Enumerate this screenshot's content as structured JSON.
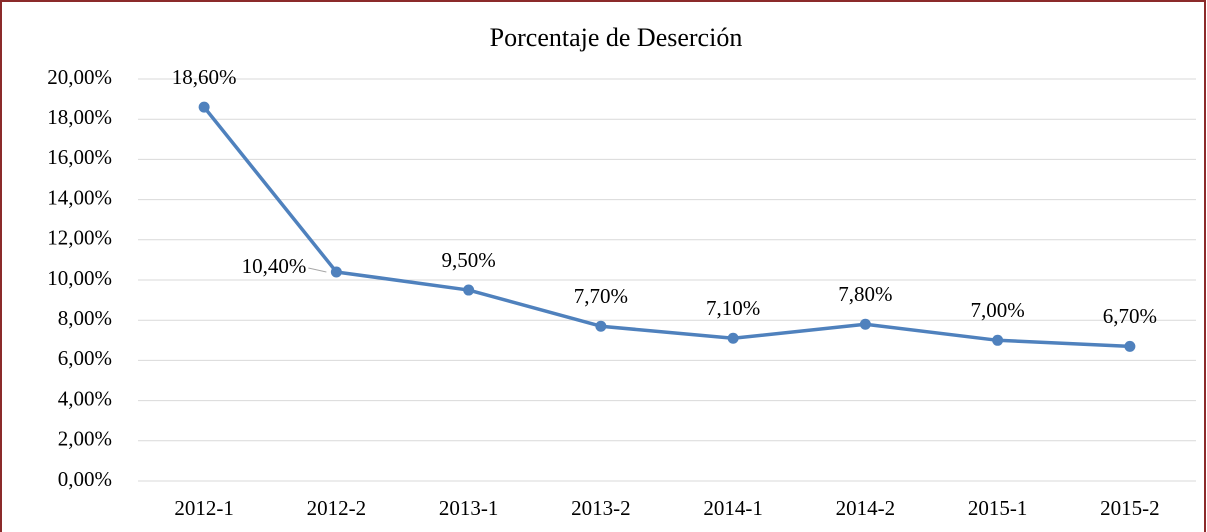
{
  "chart_data": {
    "type": "line",
    "title": "Porcentaje de Deserción",
    "categories": [
      "2012-1",
      "2012-2",
      "2013-1",
      "2013-2",
      "2014-1",
      "2014-2",
      "2015-1",
      "2015-2"
    ],
    "series": [
      {
        "name": "Porcentaje de Deserción",
        "color": "#4f81bd",
        "values": [
          18.6,
          10.4,
          9.5,
          7.7,
          7.1,
          7.8,
          7.0,
          6.7
        ],
        "value_labels": [
          "18,60%",
          "10,40%",
          "9,50%",
          "7,70%",
          "7,10%",
          "7,80%",
          "7,00%",
          "6,70%"
        ]
      }
    ],
    "ylim": [
      0,
      20
    ],
    "yticks": [
      {
        "value": 0,
        "label": "0,00%"
      },
      {
        "value": 2,
        "label": "2,00%"
      },
      {
        "value": 4,
        "label": "4,00%"
      },
      {
        "value": 6,
        "label": "6,00%"
      },
      {
        "value": 8,
        "label": "8,00%"
      },
      {
        "value": 10,
        "label": "10,00%"
      },
      {
        "value": 12,
        "label": "12,00%"
      },
      {
        "value": 14,
        "label": "14,00%"
      },
      {
        "value": 16,
        "label": "16,00%"
      },
      {
        "value": 18,
        "label": "18,00%"
      },
      {
        "value": 20,
        "label": "20,00%"
      }
    ],
    "grid": true
  }
}
